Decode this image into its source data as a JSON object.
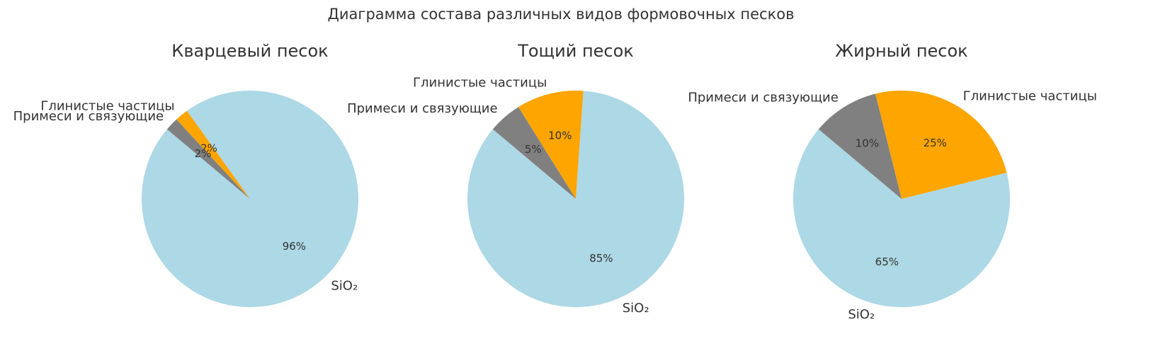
{
  "title": "Диаграмма состава различных видов формовочных песков",
  "chart_data": [
    {
      "type": "pie",
      "title": "Кварцевый песок",
      "categories": [
        "SiO₂",
        "Глинистые частицы",
        "Примеси и связующие"
      ],
      "values": [
        96,
        2,
        2
      ],
      "value_labels": [
        "96%",
        "2%",
        "2%"
      ],
      "colors": [
        "#add8e6",
        "#ffa500",
        "#808080"
      ],
      "startangle": 140
    },
    {
      "type": "pie",
      "title": "Тощий песок",
      "categories": [
        "SiO₂",
        "Глинистые частицы",
        "Примеси и связующие"
      ],
      "values": [
        85,
        10,
        5
      ],
      "value_labels": [
        "85%",
        "10%",
        "5%"
      ],
      "colors": [
        "#add8e6",
        "#ffa500",
        "#808080"
      ],
      "startangle": 140
    },
    {
      "type": "pie",
      "title": "Жирный песок",
      "categories": [
        "SiO₂",
        "Глинистые частицы",
        "Примеси и связующие"
      ],
      "values": [
        65,
        25,
        10
      ],
      "value_labels": [
        "65%",
        "25%",
        "10%"
      ],
      "colors": [
        "#add8e6",
        "#ffa500",
        "#808080"
      ],
      "startangle": 140
    }
  ]
}
